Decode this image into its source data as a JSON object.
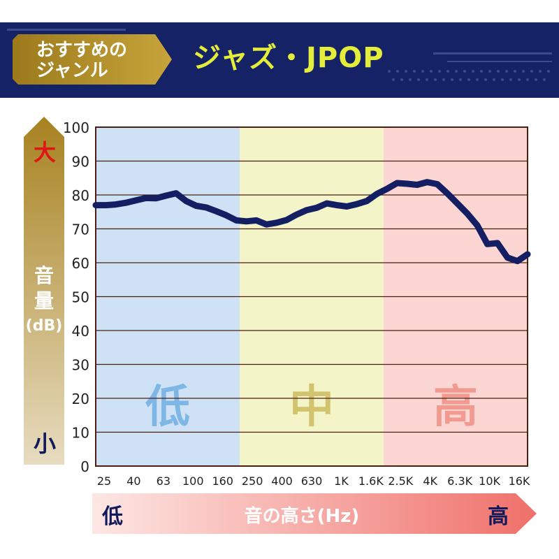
{
  "header": {
    "tag_line1": "おすすめの",
    "tag_line2": "ジャンル",
    "genre": "ジャズ・JPOP"
  },
  "vertical_axis": {
    "top_label": "大",
    "bottom_label": "小",
    "title_line1": "音",
    "title_line2": "量",
    "title_line3": "(dB)"
  },
  "horizontal_axis": {
    "left_label": "低",
    "right_label": "高",
    "title": "音の高さ(Hz)"
  },
  "bands": [
    {
      "label": "低",
      "color": "#cfe2f5",
      "text_color": "#7eb6e6"
    },
    {
      "label": "中",
      "color": "#f3f5c8",
      "text_color": "#d2c46e"
    },
    {
      "label": "高",
      "color": "#fcd6d3",
      "text_color": "#f29a90"
    }
  ],
  "colors": {
    "banner": "#152266",
    "line": "#141f63",
    "grid": "#4a1f12",
    "genre_text": "#e4ee3a"
  },
  "chart_data": {
    "type": "line",
    "x_ticks": [
      "25",
      "40",
      "63",
      "100",
      "160",
      "250",
      "400",
      "630",
      "1K",
      "1.6K",
      "2.5K",
      "4K",
      "6.3K",
      "10K",
      "16K"
    ],
    "y_ticks": [
      0,
      10,
      20,
      30,
      40,
      50,
      60,
      70,
      80,
      90,
      100
    ],
    "ylim": [
      0,
      100
    ],
    "grid": true,
    "series": [
      {
        "values": [
          77,
          77,
          77.2,
          77.7,
          78.4,
          79.1,
          79,
          79.8,
          80.5,
          78.2,
          76.8,
          76.3,
          75.2,
          74,
          72.5,
          72.2,
          72.5,
          71.3,
          71.8,
          72.6,
          74.2,
          75.5,
          76.2,
          77.5,
          77,
          76.6,
          77.3,
          78.2,
          80.3,
          81.8,
          83.5,
          83.3,
          83,
          83.8,
          83.2,
          80.5,
          77.5,
          74.5,
          71,
          65.5,
          65.8,
          61.5,
          60.5,
          62.5
        ]
      }
    ]
  }
}
